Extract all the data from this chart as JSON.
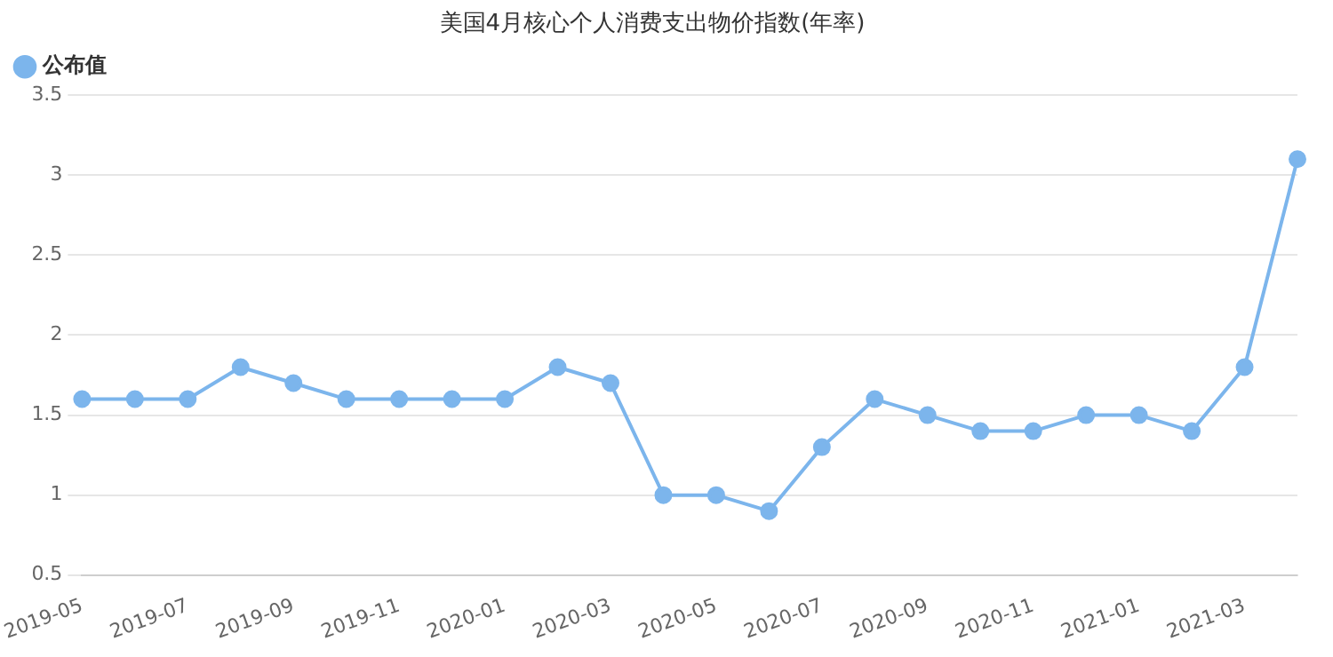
{
  "chart_data": {
    "type": "line",
    "title": "美国4月核心个人消费支出物价指数(年率)",
    "categories": [
      "2019-05",
      null,
      "2019-07",
      null,
      "2019-09",
      null,
      "2019-11",
      null,
      "2020-01",
      null,
      "2020-03",
      null,
      "2020-05",
      null,
      "2020-07",
      null,
      "2020-09",
      null,
      "2020-11",
      null,
      "2021-01",
      null,
      "2021-03",
      null
    ],
    "series": [
      {
        "name": "公布值",
        "color": "#7cb5ec",
        "values": [
          1.6,
          1.6,
          1.6,
          1.8,
          1.7,
          1.6,
          1.6,
          1.6,
          1.6,
          1.8,
          1.7,
          1.0,
          1.0,
          0.9,
          1.3,
          1.6,
          1.5,
          1.4,
          1.4,
          1.5,
          1.5,
          1.4,
          1.8,
          3.1
        ]
      }
    ],
    "ylim": [
      0.5,
      3.5
    ],
    "yticks": [
      0.5,
      1,
      1.5,
      2,
      2.5,
      3,
      3.5
    ],
    "grid": "y",
    "legend": "top left",
    "marker": "circle",
    "line_style": "solid"
  }
}
